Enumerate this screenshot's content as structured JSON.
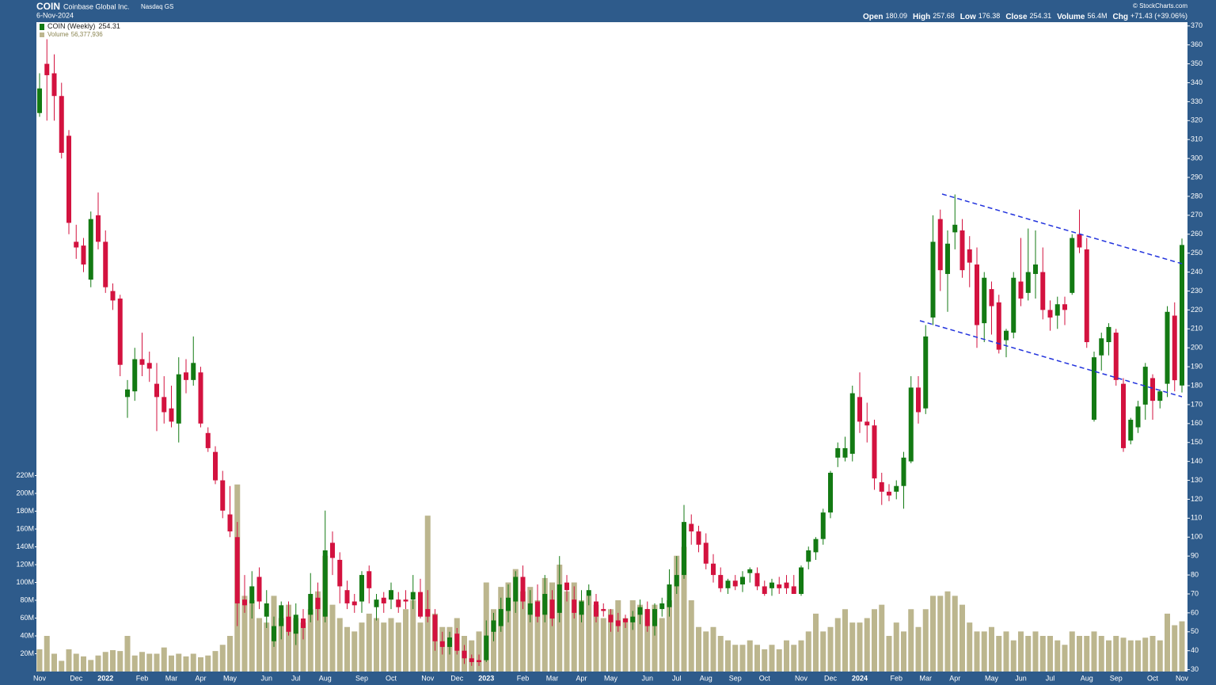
{
  "chart_data": {
    "type": "candlestick",
    "title": "COIN",
    "subtitle": "Coinbase Global Inc.",
    "exchange": "Nasdaq GS",
    "date": "6-Nov-2024",
    "source": "© StockCharts.com",
    "quote": [
      {
        "label": "Open",
        "value": 180.09
      },
      {
        "label": "High",
        "value": 257.68
      },
      {
        "label": "Low",
        "value": 176.38
      },
      {
        "label": "Close",
        "value": 254.31
      },
      {
        "label": "Volume",
        "value": "56.4M"
      },
      {
        "label": "Chg",
        "value": "+71.43 (+39.06%)"
      }
    ],
    "categories": [
      "Nov",
      null,
      null,
      null,
      null,
      "Dec",
      null,
      null,
      null,
      "2022",
      null,
      null,
      null,
      null,
      "Feb",
      null,
      null,
      null,
      "Mar",
      null,
      null,
      null,
      "Apr",
      null,
      null,
      null,
      "May",
      null,
      null,
      null,
      null,
      "Jun",
      null,
      null,
      null,
      "Jul",
      null,
      null,
      null,
      "Aug",
      null,
      null,
      null,
      null,
      "Sep",
      null,
      null,
      null,
      "Oct",
      null,
      null,
      null,
      null,
      "Nov",
      null,
      null,
      null,
      "Dec",
      null,
      null,
      null,
      "2023",
      null,
      null,
      null,
      null,
      "Feb",
      null,
      null,
      null,
      "Mar",
      null,
      null,
      null,
      "Apr",
      null,
      null,
      null,
      "May",
      null,
      null,
      null,
      null,
      "Jun",
      null,
      null,
      null,
      "Jul",
      null,
      null,
      null,
      "Aug",
      null,
      null,
      null,
      "Sep",
      null,
      null,
      null,
      "Oct",
      null,
      null,
      null,
      null,
      "Nov",
      null,
      null,
      null,
      "Dec",
      null,
      null,
      null,
      "2024",
      null,
      null,
      null,
      null,
      "Feb",
      null,
      null,
      null,
      "Mar",
      null,
      null,
      null,
      "Apr",
      null,
      null,
      null,
      null,
      "May",
      null,
      null,
      null,
      "Jun",
      null,
      null,
      null,
      "Jul",
      null,
      null,
      null,
      null,
      "Aug",
      null,
      null,
      null,
      "Sep",
      null,
      null,
      null,
      null,
      "Oct",
      null,
      null,
      null,
      "Nov"
    ],
    "series": [
      {
        "name": "COIN (Weekly)",
        "up_color": "#137a13",
        "down_color": "#d3123f",
        "open": [
          324,
          350,
          345,
          333,
          312,
          256,
          254,
          236,
          270,
          256,
          230,
          226,
          174,
          177,
          194,
          192,
          181,
          174,
          168,
          160,
          187,
          183,
          187,
          155,
          145,
          130,
          112,
          100,
          67,
          65,
          79,
          58,
          45,
          53,
          58,
          49,
          57,
          59,
          68,
          58,
          97,
          88,
          72,
          66,
          66,
          82,
          63,
          68,
          67,
          67,
          67,
          67,
          71,
          62,
          59,
          45,
          42,
          49,
          40,
          36,
          35,
          35,
          50,
          53,
          61,
          66,
          79,
          59,
          66,
          59,
          67,
          60,
          76,
          67,
          59,
          69,
          66,
          62,
          59,
          56,
          57,
          55,
          59,
          62,
          53,
          62,
          63,
          74,
          80,
          107,
          103,
          97,
          86,
          80,
          73,
          77,
          75,
          81,
          81,
          74,
          73,
          75,
          76,
          74,
          70,
          87,
          92,
          99,
          113,
          142,
          142,
          144,
          174,
          161,
          159,
          129,
          124,
          124,
          127,
          140,
          179,
          168,
          216,
          268,
          239,
          261,
          262,
          252,
          244,
          213,
          231,
          224,
          204,
          208,
          235,
          229,
          239,
          240,
          220,
          217,
          223,
          229,
          260,
          252,
          162,
          196,
          203,
          208,
          181,
          151,
          158,
          170,
          184,
          172,
          181,
          217,
          180.09
        ],
        "high": [
          345,
          363,
          355,
          340,
          315,
          265,
          258,
          272,
          282,
          262,
          234,
          228,
          183,
          200,
          208,
          198,
          192,
          185,
          180,
          195,
          194,
          206,
          190,
          158,
          148,
          135,
          127,
          108,
          80,
          82,
          84,
          72,
          58,
          66,
          66,
          65,
          62,
          81,
          76,
          114,
          103,
          92,
          77,
          70,
          82,
          85,
          70,
          71,
          76,
          71,
          72,
          80,
          78,
          72,
          62,
          50,
          50,
          52,
          43,
          38,
          38,
          56,
          60,
          68,
          75,
          82,
          85,
          72,
          75,
          80,
          72,
          90,
          80,
          74,
          72,
          75,
          70,
          65,
          62,
          60,
          59,
          61,
          67,
          66,
          65,
          68,
          83,
          90,
          117,
          112,
          106,
          102,
          91,
          84,
          78,
          80,
          82,
          84,
          84,
          77,
          78,
          79,
          80,
          80,
          85,
          95,
          100,
          115,
          135,
          150,
          153,
          180,
          187,
          171,
          162,
          134,
          128,
          130,
          145,
          185,
          185,
          212,
          270,
          273,
          262,
          281,
          268,
          259,
          253,
          240,
          235,
          228,
          210,
          240,
          258,
          263,
          262,
          253,
          225,
          227,
          227,
          260,
          273,
          258,
          198,
          208,
          213,
          210,
          184,
          163,
          172,
          192,
          186,
          178,
          222,
          224,
          257.68
        ],
        "low": [
          322,
          320,
          320,
          300,
          260,
          247,
          240,
          232,
          252,
          229,
          220,
          185,
          163,
          172,
          185,
          182,
          156,
          160,
          158,
          150,
          176,
          180,
          158,
          145,
          128,
          110,
          100,
          53,
          60,
          57,
          62,
          52,
          42,
          46,
          48,
          43,
          46,
          55,
          56,
          55,
          80,
          65,
          62,
          60,
          60,
          65,
          56,
          60,
          62,
          60,
          62,
          62,
          57,
          55,
          40,
          38,
          38,
          38,
          33,
          32,
          32,
          34,
          45,
          50,
          55,
          60,
          62,
          55,
          55,
          55,
          53,
          55,
          66,
          57,
          55,
          64,
          55,
          58,
          50,
          50,
          52,
          51,
          54,
          50,
          48,
          58,
          58,
          70,
          78,
          96,
          92,
          83,
          76,
          71,
          70,
          72,
          71,
          76,
          72,
          69,
          69,
          70,
          70,
          70,
          69,
          83,
          88,
          96,
          110,
          137,
          140,
          140,
          155,
          150,
          125,
          117,
          119,
          120,
          115,
          139,
          160,
          165,
          212,
          230,
          219,
          252,
          237,
          232,
          200,
          203,
          207,
          197,
          195,
          205,
          222,
          225,
          226,
          215,
          209,
          210,
          212,
          228,
          250,
          200,
          161,
          188,
          196,
          180,
          145,
          149,
          155,
          162,
          162,
          168,
          174,
          177,
          176.38
        ],
        "close": [
          337,
          344,
          333,
          303,
          266,
          253,
          244,
          268,
          256,
          232,
          225,
          191,
          178,
          194,
          191,
          189,
          174,
          166,
          161,
          186,
          183,
          192,
          160,
          147,
          130,
          114,
          103,
          65,
          64,
          74,
          66,
          65,
          53,
          64,
          50,
          59,
          52,
          70,
          62,
          93,
          89,
          74,
          65,
          64,
          80,
          73,
          67,
          65,
          72,
          63,
          66,
          71,
          58,
          58,
          45,
          42,
          47,
          40,
          36,
          34,
          34,
          48,
          56,
          62,
          68,
          79,
          66,
          65,
          58,
          70,
          57,
          75,
          72,
          60,
          66,
          72,
          58,
          61,
          55,
          53,
          55,
          58,
          63,
          53,
          62,
          65,
          75,
          80,
          108,
          103,
          96,
          86,
          80,
          73,
          77,
          74,
          79,
          83,
          74,
          70,
          76,
          73,
          73,
          70,
          84,
          93,
          99,
          113,
          134,
          147,
          147,
          176,
          161,
          159,
          131,
          124,
          122,
          127,
          142,
          179,
          166,
          206,
          256,
          241,
          255,
          265,
          241,
          245,
          212,
          237,
          222,
          199,
          209,
          237,
          226,
          240,
          244,
          220,
          216,
          223,
          220,
          258,
          253,
          203,
          195,
          205,
          211,
          183,
          147,
          162,
          169,
          190,
          172,
          177,
          219,
          182.88,
          254.31
        ]
      },
      {
        "name": "Volume",
        "color": "#bcb68e",
        "axis": "y2",
        "legend_value": "56,377,936",
        "values": [
          25,
          40,
          20,
          12,
          25,
          20,
          17,
          13,
          18,
          22,
          24,
          23,
          40,
          18,
          22,
          20,
          20,
          27,
          18,
          20,
          17,
          20,
          16,
          18,
          23,
          30,
          40,
          210,
          85,
          80,
          60,
          55,
          85,
          60,
          75,
          60,
          55,
          70,
          90,
          130,
          75,
          60,
          50,
          45,
          55,
          65,
          60,
          55,
          60,
          55,
          70,
          80,
          55,
          175,
          65,
          50,
          50,
          60,
          40,
          35,
          45,
          100,
          70,
          95,
          100,
          115,
          90,
          95,
          80,
          105,
          100,
          120,
          90,
          100,
          80,
          85,
          75,
          60,
          70,
          80,
          60,
          80,
          75,
          70,
          75,
          60,
          80,
          130,
          140,
          80,
          50,
          45,
          50,
          40,
          35,
          30,
          30,
          35,
          30,
          25,
          30,
          25,
          35,
          30,
          35,
          45,
          65,
          45,
          50,
          60,
          70,
          55,
          55,
          60,
          70,
          75,
          40,
          55,
          45,
          70,
          50,
          70,
          85,
          85,
          90,
          85,
          75,
          55,
          45,
          45,
          50,
          40,
          45,
          35,
          45,
          40,
          45,
          40,
          40,
          35,
          30,
          45,
          40,
          40,
          45,
          40,
          35,
          40,
          38,
          35,
          35,
          38,
          40,
          35,
          65,
          52,
          56.377936
        ]
      }
    ],
    "ylim": [
      29,
      372
    ],
    "yticks": [
      30,
      40,
      50,
      60,
      70,
      80,
      90,
      100,
      110,
      120,
      130,
      140,
      150,
      160,
      170,
      180,
      190,
      200,
      210,
      220,
      230,
      240,
      250,
      260,
      270,
      280,
      290,
      300,
      310,
      320,
      330,
      340,
      350,
      360,
      370
    ],
    "y2lim": [
      0,
      729
    ],
    "y2ticks": [
      {
        "value": 20,
        "label": "20M"
      },
      {
        "value": 40,
        "label": "40M"
      },
      {
        "value": 60,
        "label": "60M"
      },
      {
        "value": 80,
        "label": "80M"
      },
      {
        "value": 100,
        "label": "100M"
      },
      {
        "value": 120,
        "label": "120M"
      },
      {
        "value": 140,
        "label": "140M"
      },
      {
        "value": 160,
        "label": "160M"
      },
      {
        "value": 180,
        "label": "180M"
      },
      {
        "value": 200,
        "label": "200M"
      },
      {
        "value": 220,
        "label": "220M"
      }
    ],
    "grid": false
  }
}
